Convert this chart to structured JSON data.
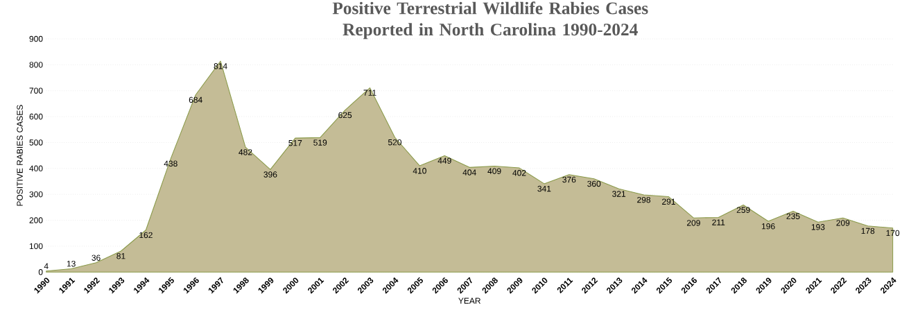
{
  "chart_data": {
    "type": "area",
    "title": "Positive Terrestrial Wildlife Rabies Cases Reported in North Carolina 1990-2024",
    "xlabel": "YEAR",
    "ylabel": "POSITIVE RABIES CASES",
    "categories": [
      "1990",
      "1991",
      "1992",
      "1993",
      "1994",
      "1995",
      "1996",
      "1997",
      "1998",
      "1999",
      "2000",
      "2001",
      "2002",
      "2003",
      "2004",
      "2005",
      "2006",
      "2007",
      "2008",
      "2009",
      "2010",
      "2011",
      "2012",
      "2013",
      "2014",
      "2015",
      "2016",
      "2017",
      "2018",
      "2019",
      "2020",
      "2021",
      "2022",
      "2023",
      "2024"
    ],
    "values": [
      4,
      13,
      36,
      81,
      162,
      438,
      684,
      814,
      482,
      396,
      517,
      519,
      625,
      711,
      520,
      410,
      449,
      404,
      409,
      402,
      341,
      376,
      360,
      321,
      298,
      291,
      209,
      211,
      259,
      196,
      235,
      193,
      209,
      178,
      170
    ],
    "color": "#c4bc96",
    "ylim": [
      0,
      900
    ],
    "yticks": [
      0,
      100,
      200,
      300,
      400,
      500,
      600,
      700,
      800,
      900
    ],
    "grid": "y",
    "data_labels": true
  }
}
